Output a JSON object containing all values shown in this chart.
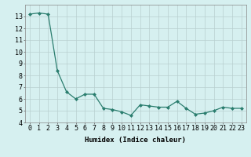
{
  "x": [
    0,
    1,
    2,
    3,
    4,
    5,
    6,
    7,
    8,
    9,
    10,
    11,
    12,
    13,
    14,
    15,
    16,
    17,
    18,
    19,
    20,
    21,
    22,
    23
  ],
  "y": [
    13.2,
    13.3,
    13.2,
    8.4,
    6.6,
    6.0,
    6.4,
    6.4,
    5.2,
    5.1,
    4.9,
    4.6,
    5.5,
    5.4,
    5.3,
    5.3,
    5.8,
    5.2,
    4.7,
    4.8,
    5.0,
    5.3,
    5.2,
    5.2
  ],
  "line_color": "#2a7d6e",
  "marker": "D",
  "marker_size": 2,
  "bg_color": "#d6f0f0",
  "grid_color": "#b8d0d0",
  "xlabel": "Humidex (Indice chaleur)",
  "ylim": [
    4,
    14
  ],
  "xlim": [
    -0.5,
    23.5
  ],
  "yticks": [
    4,
    5,
    6,
    7,
    8,
    9,
    10,
    11,
    12,
    13
  ],
  "xticks": [
    0,
    1,
    2,
    3,
    4,
    5,
    6,
    7,
    8,
    9,
    10,
    11,
    12,
    13,
    14,
    15,
    16,
    17,
    18,
    19,
    20,
    21,
    22,
    23
  ],
  "xlabel_fontsize": 6.5,
  "tick_fontsize": 6,
  "title_fontsize": 7,
  "linewidth": 0.9
}
